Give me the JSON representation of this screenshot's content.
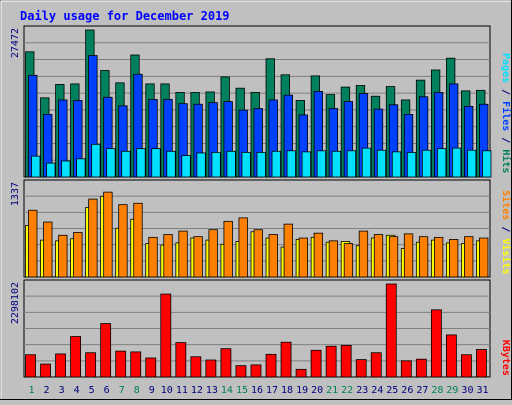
{
  "chart_data": {
    "type": "bar",
    "title": "Daily usage for December 2019",
    "categories": [
      "1",
      "2",
      "3",
      "4",
      "5",
      "6",
      "7",
      "8",
      "9",
      "10",
      "11",
      "12",
      "13",
      "14",
      "15",
      "16",
      "17",
      "18",
      "19",
      "20",
      "21",
      "22",
      "23",
      "24",
      "25",
      "26",
      "27",
      "28",
      "29",
      "30",
      "31"
    ],
    "weekend_categories": [
      "1",
      "7",
      "8",
      "14",
      "15",
      "21",
      "22",
      "28",
      "29"
    ],
    "panels": [
      {
        "id": "hits-panel",
        "ymax_label": "27472",
        "ymax": 27472,
        "series": [
          {
            "name": "Hits",
            "color": "#00805c",
            "values": [
              23400,
              14800,
              17300,
              17400,
              27472,
              19900,
              17600,
              22800,
              17400,
              17400,
              15800,
              15800,
              15900,
              18700,
              16600,
              15800,
              22100,
              19100,
              14300,
              18900,
              15400,
              16800,
              17100,
              15100,
              16900,
              14400,
              18100,
              20000,
              22200,
              16100,
              16200
            ]
          },
          {
            "name": "Files",
            "color": "#0040ff",
            "values": [
              19000,
              11700,
              14400,
              14300,
              22700,
              14900,
              13300,
              19200,
              14500,
              14500,
              13700,
              13600,
              13900,
              14100,
              12500,
              12800,
              14400,
              15300,
              11600,
              16000,
              12800,
              14100,
              15600,
              12700,
              13500,
              11700,
              15000,
              15800,
              17400,
              13200,
              13600
            ]
          },
          {
            "name": "Pages",
            "color": "#00e0ff",
            "values": [
              3900,
              2600,
              3000,
              3400,
              6100,
              5300,
              4800,
              5300,
              5300,
              4800,
              4000,
              4500,
              4600,
              4800,
              4600,
              4600,
              4800,
              4900,
              4700,
              4900,
              4800,
              4900,
              5400,
              5000,
              4700,
              4600,
              5000,
              5300,
              5400,
              5000,
              4900
            ]
          }
        ]
      },
      {
        "id": "sites-panel",
        "ymax_label": "1337",
        "ymax": 1337,
        "series": [
          {
            "name": "Visits",
            "color": "#ffff00",
            "values": [
              740,
              530,
              520,
              550,
              1000,
              1160,
              700,
              830,
              480,
              460,
              490,
              560,
              530,
              470,
              510,
              650,
              560,
              430,
              540,
              570,
              500,
              510,
              450,
              560,
              600,
              410,
              500,
              530,
              490,
              480,
              520
            ]
          },
          {
            "name": "Sites",
            "color": "#ff8000",
            "values": [
              960,
              790,
              600,
              640,
              1120,
              1220,
              1040,
              1060,
              570,
              610,
              660,
              580,
              680,
              800,
              850,
              680,
              610,
              760,
              560,
              630,
              520,
              480,
              660,
              610,
              580,
              620,
              580,
              570,
              540,
              580,
              560
            ]
          }
        ]
      },
      {
        "id": "kbytes-panel",
        "ymax_label": "2298102",
        "ymax": 2298102,
        "series": [
          {
            "name": "KBytes",
            "color": "#ff0000",
            "values": [
              550000,
              320000,
              570000,
              1000000,
              600000,
              1320000,
              640000,
              620000,
              470000,
              2050000,
              850000,
              500000,
              420000,
              700000,
              280000,
              300000,
              560000,
              860000,
              190000,
              660000,
              760000,
              780000,
              430000,
              600000,
              2298102,
              400000,
              440000,
              1660000,
              1040000,
              550000,
              680000
            ]
          }
        ]
      }
    ],
    "side_labels": {
      "hits": [
        {
          "text": "Pages",
          "color": "#00e0ff"
        },
        {
          "text": " / ",
          "color": "#000080"
        },
        {
          "text": "Files",
          "color": "#0040ff"
        },
        {
          "text": " / ",
          "color": "#000080"
        },
        {
          "text": "Hits",
          "color": "#00805c"
        }
      ],
      "sites": [
        {
          "text": "Sites",
          "color": "#ff8000"
        },
        {
          "text": " / ",
          "color": "#000080"
        },
        {
          "text": "Visits",
          "color": "#ffff00"
        }
      ],
      "kbytes": [
        {
          "text": "KBytes",
          "color": "#ff0000"
        }
      ]
    },
    "colors": {
      "background": "#c0c0c0",
      "title": "#0000ff",
      "axis_label": "#000080",
      "weekday_label": "#000080",
      "weekend_label": "#00805c",
      "grid": "#808080"
    },
    "grid": true
  }
}
